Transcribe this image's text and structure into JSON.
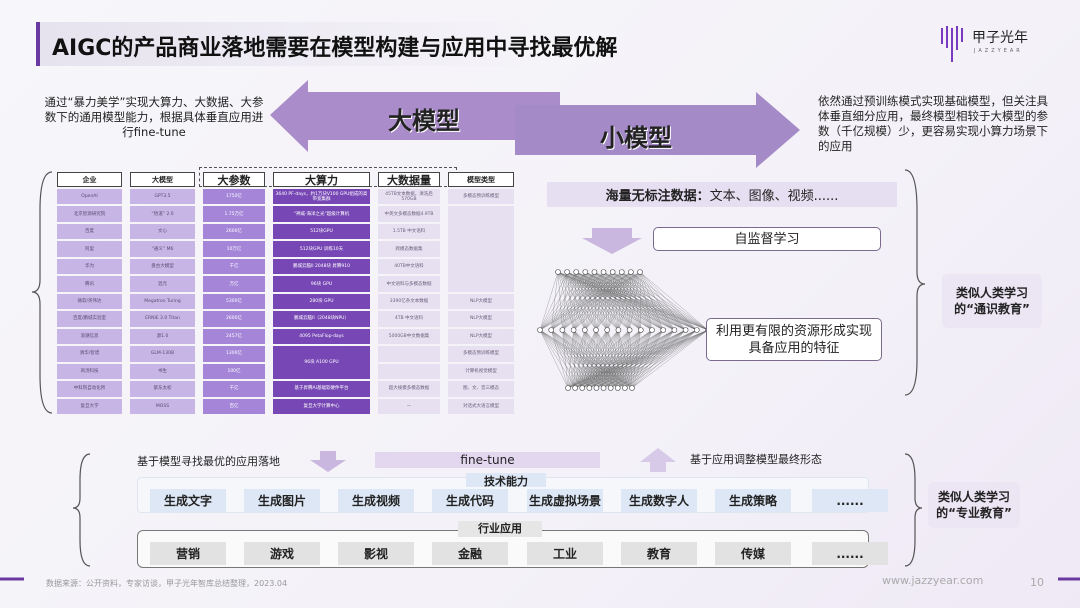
{
  "title": "AIGC的产品商业落地需要在模型构建与应用中寻找最优解",
  "logo": {
    "name": "甲子光年",
    "sub": "JAZZYEAR"
  },
  "big_model": {
    "label": "大模型",
    "desc": "通过“暴力美学”实现大算力、大数据、大参数下的通用模型能力，根据具体垂直应用进行fine-tune"
  },
  "small_model": {
    "label": "小模型",
    "desc": "依然通过预训练模式实现基础模型，但关注具体垂直细分应用，最终模型相较于大模型的参数（千亿规模）少，更容易实现小算力场景下的应用"
  },
  "table": {
    "headers": [
      "企业",
      "大模型",
      "大参数",
      "大算力",
      "大数据量",
      "模型类型"
    ],
    "rows": [
      [
        "OpenAI",
        "GPT3.5",
        "1750亿",
        "3640 PF-days，约1万块V100 GPU组成的高带宽集群",
        "45TB文本数据，清洗后570GB",
        "多模态预训练模型"
      ],
      [
        "北京智源研究院",
        "“悟道” 2.0",
        "1.75万亿",
        "“神威·海洋之光”超级计算机",
        "中英文多模态数据4.9TB",
        ""
      ],
      [
        "百度",
        "文心",
        "2600亿",
        "512块GPU",
        "1.5TB 中文语料",
        ""
      ],
      [
        "阿里",
        "“通义” M6",
        "10万亿",
        "512块GPU 训练10天",
        "跨模态数据集",
        "多模态预训练模型"
      ],
      [
        "华为",
        "盘古大模型",
        "千亿",
        "鹏城云脑II 2048块 昇腾910",
        "40TB中文语料",
        ""
      ],
      [
        "腾讯",
        "混元",
        "万亿",
        "96块 GPU",
        "中文语料与多模态数据",
        ""
      ],
      [
        "微软/英伟达",
        "Megatron Turing",
        "5300亿",
        "280块 GPU",
        "3390亿条文本数据",
        "NLP大模型"
      ],
      [
        "百度/鹏城实验室",
        "ERNIE 3.0 Titan",
        "2600亿",
        "鹏城云脑II（2048块NPU）",
        "4TB 中文语料",
        "NLP大模型"
      ],
      [
        "浪潮信息",
        "源1.0",
        "2457亿",
        "4095 PetaFlop-days",
        "5000GB中文数据集",
        "NLP大模型"
      ],
      [
        "清华/智谱",
        "GLM-130B",
        "1300亿",
        "96块 A100 GPU",
        "",
        "多模态预训练模型"
      ],
      [
        "商汤科技",
        "书生",
        "100亿",
        "",
        "",
        "计算机视觉模型"
      ],
      [
        "中科院自动化所",
        "紫东太初",
        "千亿",
        "基于昇腾AI基础软硬件平台",
        "超大规模多模态数据",
        "图、文、音三模态"
      ],
      [
        "复旦大学",
        "MOSS",
        "百亿",
        "复旦大学计算中心",
        "—",
        "对话式大语言模型"
      ]
    ]
  },
  "right_panel": {
    "data_label": "海量无标注数据：",
    "data_items": "文本、图像、视频......",
    "self_supervised": "自监督学习",
    "feature": "利用更有限的资源形成实现具备应用的特征",
    "side_label": "类似人类学习的“通识教育”"
  },
  "bottom": {
    "left_note": "基于模型寻找最优的应用落地",
    "finetune": "fine-tune",
    "right_note": "基于应用调整模型最终形态",
    "tech_title": "技术能力",
    "tech": [
      "生成文字",
      "生成图片",
      "生成视频",
      "生成代码",
      "生成虚拟场景",
      "生成数字人",
      "生成策略",
      "......"
    ],
    "industry_title": "行业应用",
    "industry": [
      "营销",
      "游戏",
      "影视",
      "金融",
      "工业",
      "教育",
      "传媒",
      "......"
    ],
    "side_label": "类似人类学习的“专业教育”"
  },
  "footer": {
    "source": "数据来源：公开资料，专家访谈，甲子光年智库总结整理，2023.04",
    "url": "www.jazzyear.com",
    "page": "10"
  },
  "colors": {
    "accent": "#6a3aa0",
    "arrow": "#a98cc9"
  }
}
